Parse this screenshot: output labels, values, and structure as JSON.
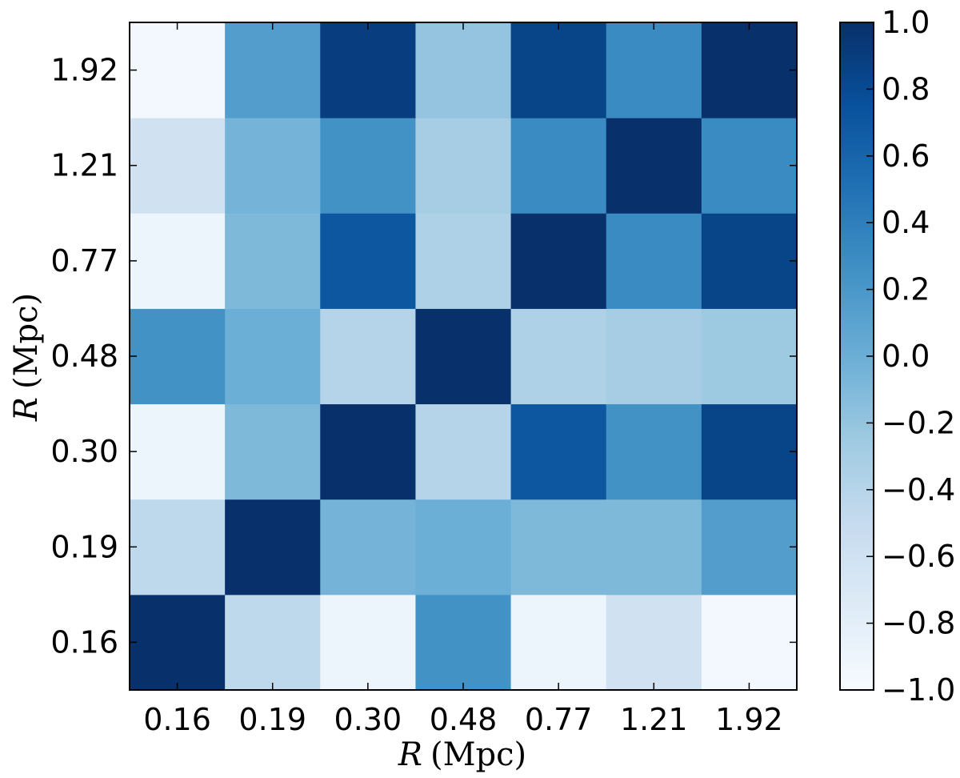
{
  "chart_data": {
    "type": "heatmap",
    "title": "",
    "categories_x": [
      "0.16",
      "0.19",
      "0.30",
      "0.48",
      "0.77",
      "1.21",
      "1.92"
    ],
    "categories_y": [
      "0.16",
      "0.19",
      "0.30",
      "0.48",
      "0.77",
      "1.21",
      "1.92"
    ],
    "xlabel": {
      "symbol": "R",
      "unit": "(Mpc)"
    },
    "ylabel": {
      "symbol": "R",
      "unit": "(Mpc)"
    },
    "values": [
      [
        1.0,
        -0.45,
        -0.9,
        0.25,
        -0.9,
        -0.6,
        -0.95
      ],
      [
        -0.45,
        1.0,
        -0.05,
        0.0,
        -0.1,
        -0.1,
        0.15
      ],
      [
        -0.9,
        -0.1,
        1.0,
        -0.4,
        0.7,
        0.25,
        0.85
      ],
      [
        0.25,
        0.0,
        -0.4,
        1.0,
        -0.35,
        -0.3,
        -0.25
      ],
      [
        -0.9,
        -0.1,
        0.7,
        -0.35,
        1.0,
        0.3,
        0.85
      ],
      [
        -0.6,
        -0.05,
        0.25,
        -0.3,
        0.3,
        1.0,
        0.3
      ],
      [
        -0.95,
        0.15,
        0.9,
        -0.2,
        0.85,
        0.3,
        1.0
      ]
    ],
    "zlim": [
      -1.0,
      1.0
    ],
    "colorbar": {
      "ticks": [
        1.0,
        0.8,
        0.6,
        0.4,
        0.2,
        0.0,
        -0.2,
        -0.4,
        -0.6,
        -0.8,
        -1.0
      ],
      "tick_labels": [
        "1.0",
        "0.8",
        "0.6",
        "0.4",
        "0.2",
        "0.0",
        "−0.2",
        "−0.4",
        "−0.6",
        "−0.8",
        "−1.0"
      ]
    },
    "colormap": "Blues",
    "colormap_stops": [
      "#f7fbff",
      "#deebf7",
      "#c6dbef",
      "#9ecae1",
      "#6baed6",
      "#4292c6",
      "#2171b5",
      "#08519c",
      "#08306b"
    ],
    "grid": false
  }
}
